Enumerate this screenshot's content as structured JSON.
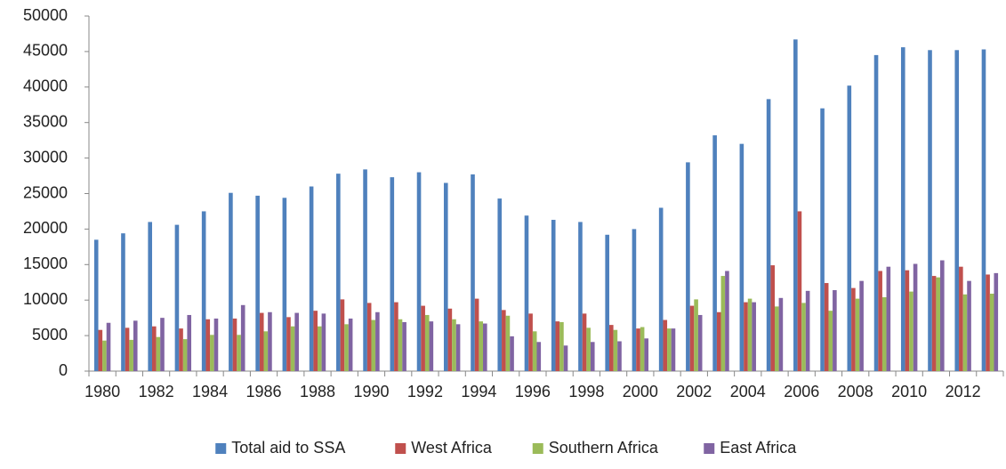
{
  "chart_data": {
    "type": "bar",
    "categories": [
      "1980",
      null,
      "1982",
      null,
      "1984",
      null,
      "1986",
      null,
      "1988",
      null,
      "1990",
      null,
      "1992",
      null,
      "1994",
      null,
      "1996",
      null,
      "1998",
      null,
      "2000",
      null,
      "2002",
      null,
      "2004",
      null,
      "2006",
      null,
      "2008",
      null,
      "2010",
      null,
      "2012",
      null
    ],
    "series": [
      {
        "name": "Total aid to SSA",
        "color": "#4f81bd",
        "values": [
          18500,
          19400,
          21000,
          20600,
          22500,
          25100,
          24700,
          24400,
          26000,
          27800,
          28400,
          27300,
          28000,
          26500,
          27700,
          24300,
          21900,
          21300,
          21000,
          19200,
          20000,
          23000,
          29400,
          33200,
          32000,
          38300,
          46700,
          37000,
          40200,
          44500,
          45600,
          45200,
          45200,
          45300
        ]
      },
      {
        "name": "West Africa",
        "color": "#c0504d",
        "values": [
          5800,
          6100,
          6300,
          6000,
          7300,
          7400,
          8200,
          7600,
          8500,
          10100,
          9600,
          9700,
          9200,
          8800,
          10200,
          8600,
          8100,
          7000,
          8100,
          6500,
          6000,
          7200,
          9200,
          8300,
          9700,
          14900,
          22500,
          12400,
          11700,
          14100,
          14200,
          13400,
          14700,
          13600
        ]
      },
      {
        "name": "Southern Africa",
        "color": "#9bbb59",
        "values": [
          4300,
          4400,
          4800,
          4500,
          5100,
          5100,
          5600,
          6300,
          6300,
          6600,
          7200,
          7300,
          7900,
          7300,
          7000,
          7800,
          5600,
          6900,
          6100,
          5800,
          6200,
          6000,
          10100,
          13400,
          10200,
          9100,
          9600,
          8500,
          10200,
          10400,
          11200,
          13200,
          10800,
          10900
        ]
      },
      {
        "name": "East Africa",
        "color": "#8064a2",
        "values": [
          6800,
          7100,
          7500,
          7900,
          7400,
          9300,
          8300,
          8200,
          8100,
          7400,
          8300,
          6900,
          7000,
          6600,
          6700,
          4900,
          4100,
          3600,
          4100,
          4200,
          4600,
          6000,
          7900,
          14100,
          9700,
          10300,
          11300,
          11400,
          12700,
          14700,
          15100,
          15600,
          12700,
          13800
        ]
      }
    ],
    "ylim": [
      0,
      50000
    ],
    "yticks": [
      0,
      5000,
      10000,
      15000,
      20000,
      25000,
      30000,
      35000,
      40000,
      45000,
      50000
    ],
    "grid": false,
    "legend": "bottom"
  }
}
